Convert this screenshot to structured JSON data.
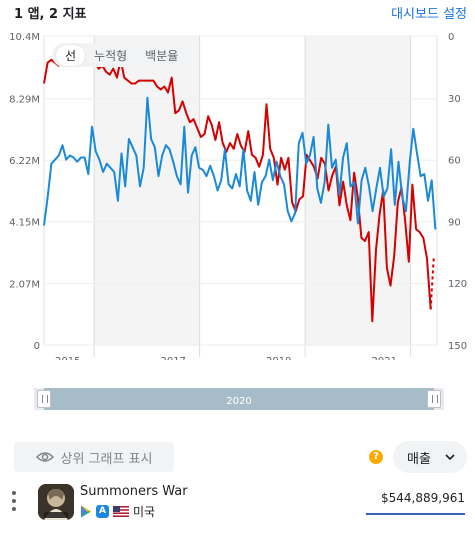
{
  "header": {
    "title": "1 앱, 2 지표",
    "dashboard_link": "대시보드 설정"
  },
  "view_toggle": {
    "options": [
      "선",
      "누적형",
      "백분율"
    ],
    "active": 0
  },
  "scrubber": {
    "label": "2020"
  },
  "controls": {
    "top_graph_label": "상위 그래프 표시",
    "help_glyph": "?",
    "metric_select": "매출"
  },
  "app": {
    "name": "Summoners War",
    "country": "미국",
    "value": "$544,889,961",
    "icons": [
      "google-play-icon",
      "app-store-icon",
      "us-flag-icon"
    ]
  },
  "colors": {
    "revenue": "#d50000",
    "rank": "#1a8ad8",
    "scrubber": "#a7bcc9"
  },
  "chart_data": {
    "type": "line",
    "x_ticks": [
      "2015",
      "2017",
      "2019",
      "2021"
    ],
    "y_left_ticks": [
      "10.4M",
      "8.29M",
      "6.22M",
      "4.15M",
      "2.07M",
      "0"
    ],
    "y_right_ticks": [
      "0",
      "30",
      "60",
      "90",
      "120",
      "150"
    ],
    "ylim_left": [
      0,
      10.4
    ],
    "ylim_right": [
      150,
      0
    ],
    "grid": "horizontal",
    "series": [
      {
        "axis": "left",
        "values": [
          8.8,
          9.5,
          9.6,
          9.5,
          9.4,
          9.6,
          9.7,
          9.8,
          9.9,
          9.8,
          9.7,
          9.8,
          9.6,
          9.7,
          9.5,
          9.3,
          9.4,
          9.2,
          9.1,
          9.3,
          9.0,
          9.6,
          9.0,
          8.9,
          8.8,
          8.8,
          8.9,
          8.9,
          8.9,
          8.9,
          8.9,
          8.7,
          8.6,
          8.7,
          8.5,
          9.0,
          7.8,
          7.9,
          8.2,
          7.8,
          7.5,
          7.6,
          7.3,
          7.0,
          7.1,
          7.7,
          7.4,
          6.9,
          7.5,
          6.8,
          6.5,
          6.8,
          6.6,
          7.1,
          6.7,
          6.5,
          7.2,
          6.4,
          6.3,
          6.0,
          6.4,
          8.1,
          6.6,
          6.3,
          5.4,
          6.3,
          5.9,
          6.3,
          4.8,
          4.5,
          4.9,
          5.0,
          6.4,
          6.2,
          6.0,
          5.6,
          6.3,
          6.1,
          5.2,
          5.7,
          6.0,
          4.7,
          5.5,
          4.7,
          4.2,
          5.8,
          5.0,
          3.6,
          3.5,
          3.8,
          0.8,
          3.2,
          4.4,
          5.2,
          2.6,
          2.0,
          3.0,
          4.8,
          5.3,
          4.2,
          2.8,
          5.4,
          3.9,
          3.8,
          3.6,
          2.9,
          1.2
        ],
        "projected": [
          1.2,
          3.0
        ]
      },
      {
        "axis": "right",
        "values": [
          92,
          78,
          62,
          60,
          58,
          53,
          60,
          58,
          59,
          61,
          59,
          59,
          67,
          44,
          56,
          60,
          66,
          62,
          64,
          66,
          80,
          57,
          73,
          50,
          54,
          58,
          73,
          64,
          30,
          50,
          54,
          68,
          58,
          53,
          55,
          61,
          68,
          72,
          44,
          76,
          58,
          54,
          64,
          65,
          68,
          63,
          68,
          75,
          70,
          55,
          72,
          74,
          67,
          73,
          55,
          75,
          80,
          66,
          82,
          71,
          68,
          60,
          70,
          61,
          68,
          72,
          85,
          90,
          86,
          52,
          47,
          62,
          58,
          49,
          74,
          81,
          71,
          43,
          64,
          60,
          77,
          59,
          52,
          73,
          71,
          91,
          70,
          64,
          73,
          85,
          74,
          64,
          78,
          74,
          55,
          82,
          61,
          78,
          85,
          62,
          45,
          57,
          68,
          67,
          80,
          70,
          94
        ]
      }
    ]
  }
}
